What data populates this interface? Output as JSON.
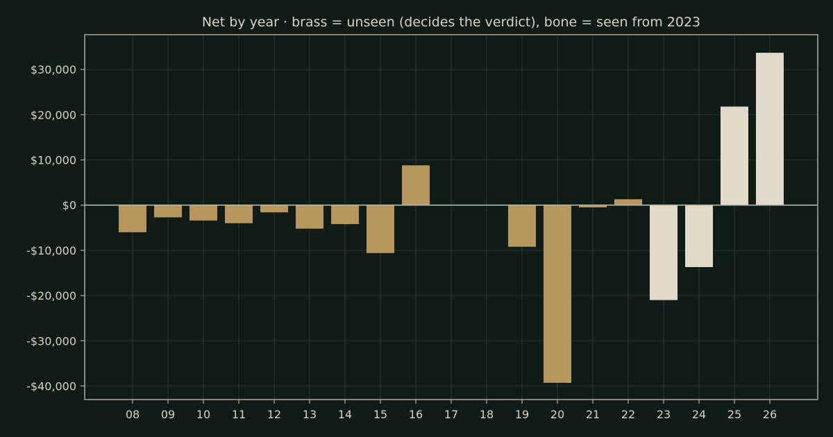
{
  "chart_data": {
    "type": "bar",
    "title": "Net by year  ·  brass = unseen (decides the verdict), bone = seen from 2023",
    "xlabel": "",
    "ylabel": "",
    "categories": [
      "08",
      "09",
      "10",
      "11",
      "12",
      "13",
      "14",
      "15",
      "16",
      "17",
      "18",
      "19",
      "20",
      "21",
      "22",
      "23",
      "24",
      "25",
      "26"
    ],
    "values": [
      -6000,
      -2700,
      -3400,
      -4000,
      -1600,
      -5200,
      -4200,
      -10600,
      8800,
      0,
      0,
      -9200,
      -39300,
      -500,
      1300,
      -21000,
      -13700,
      21800,
      33700
    ],
    "series_groups": [
      "unseen",
      "unseen",
      "unseen",
      "unseen",
      "unseen",
      "unseen",
      "unseen",
      "unseen",
      "unseen",
      "unseen",
      "unseen",
      "unseen",
      "unseen",
      "unseen",
      "unseen",
      "seen",
      "seen",
      "seen",
      "seen"
    ],
    "y_ticks": [
      30000,
      20000,
      10000,
      0,
      -10000,
      -20000,
      -30000,
      -40000
    ],
    "y_tick_labels": [
      "$30,000",
      "$20,000",
      "$10,000",
      "$0",
      "-$10,000",
      "-$20,000",
      "-$30,000",
      "-$40,000"
    ],
    "ylim": [
      -43000,
      37700
    ],
    "grid": true,
    "colors": {
      "unseen": "#bf9c62",
      "seen": "#ebe3d3",
      "background": "#0f1c17",
      "frame": "#b8b3a2",
      "grid": "#2a3a33",
      "text": "#d8d3c3"
    }
  }
}
